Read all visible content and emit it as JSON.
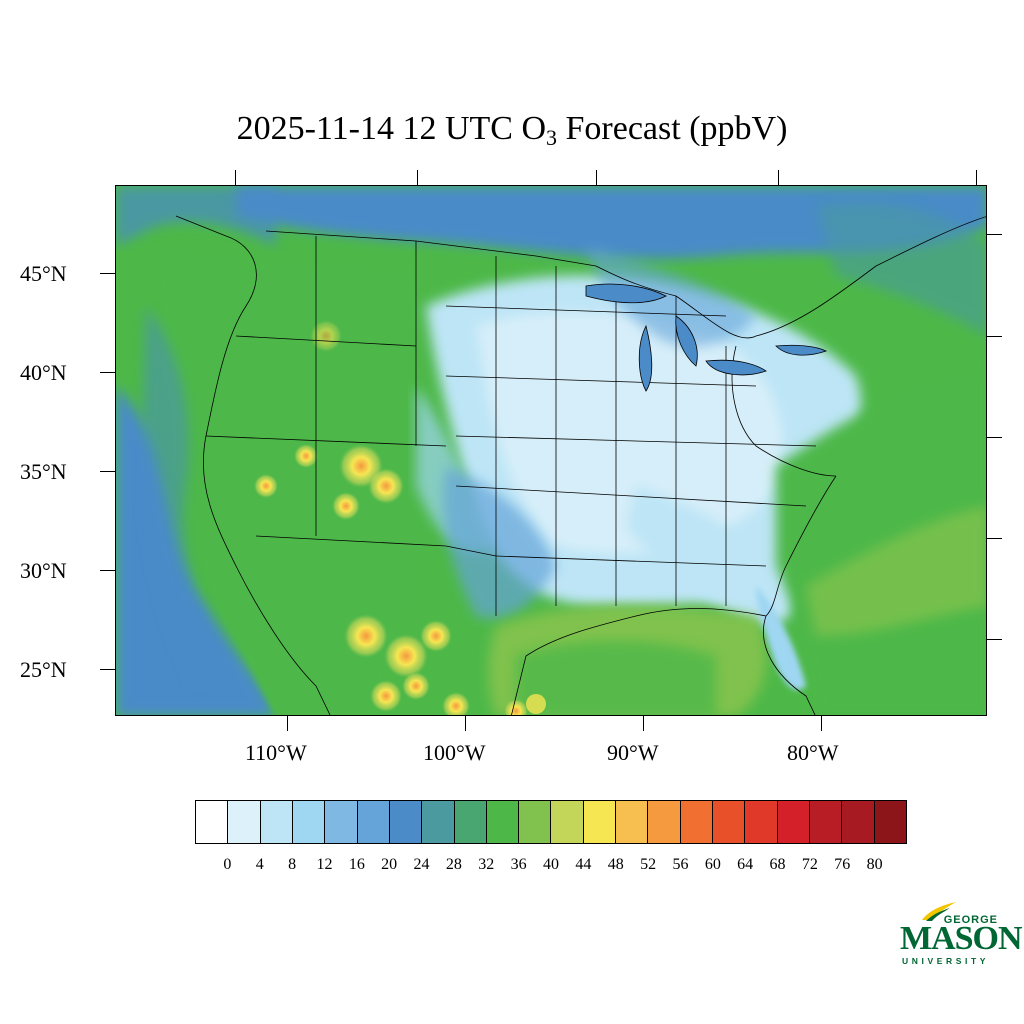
{
  "title": {
    "main": "2025-11-14 12 UTC O",
    "subscript": "3",
    "suffix": " Forecast (ppbV)"
  },
  "map": {
    "lat_labels": [
      "45°N",
      "40°N",
      "35°N",
      "30°N",
      "25°N"
    ],
    "lon_labels": [
      "110°W",
      "100°W",
      "90°W",
      "80°W"
    ],
    "field_colors": {
      "ocean_pacific": "#4a8fcc",
      "land_default": "#4db848",
      "continent_low": "#b7e2f5",
      "gulf": "#6abf4b"
    }
  },
  "colorbar": {
    "colors": [
      "#ffffff",
      "#ddf1fa",
      "#bde5f6",
      "#9fd6f2",
      "#7fb9e3",
      "#65a4d9",
      "#4a8bc8",
      "#4a9aa0",
      "#4aa670",
      "#4db848",
      "#80c24d",
      "#c4d65a",
      "#f6e652",
      "#f6bf4f",
      "#f59a3f",
      "#f26f32",
      "#e85029",
      "#e03829",
      "#d42029",
      "#b81c25",
      "#a81a22",
      "#8c1519"
    ],
    "labels": [
      "0",
      "4",
      "8",
      "12",
      "16",
      "20",
      "24",
      "28",
      "32",
      "36",
      "40",
      "44",
      "48",
      "52",
      "56",
      "60",
      "64",
      "68",
      "72",
      "76",
      "80"
    ]
  },
  "logo": {
    "line1": "GEORGE",
    "line2": "MASON",
    "line3": "UNIVERSITY"
  }
}
